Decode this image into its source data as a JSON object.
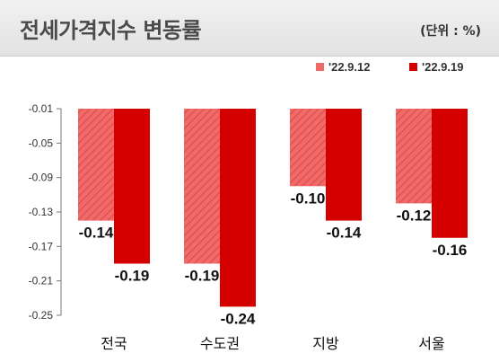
{
  "header": {
    "title": "전세가격지수 변동률",
    "unit": "(단위 : %)"
  },
  "colors": {
    "series1": "#f06a6a",
    "series1_stripe": "#e04848",
    "series2": "#d40000",
    "title_bg": "#e8e8e8"
  },
  "chart_data": {
    "type": "bar",
    "title": "전세가격지수 변동률",
    "unit": "(단위 : %)",
    "categories": [
      "전국",
      "수도권",
      "지방",
      "서울"
    ],
    "series": [
      {
        "name": "'22.9.12",
        "values": [
          -0.14,
          -0.19,
          -0.1,
          -0.12
        ],
        "labels": [
          "-0.14",
          "-0.19",
          "-0.10",
          "-0.12"
        ]
      },
      {
        "name": "'22.9.19",
        "values": [
          -0.19,
          -0.24,
          -0.14,
          -0.16
        ],
        "labels": [
          "-0.19",
          "-0.24",
          "-0.14",
          "-0.16"
        ]
      }
    ],
    "yticks": [
      "-0.01",
      "-0.05",
      "-0.09",
      "-0.13",
      "-0.17",
      "-0.21",
      "-0.25"
    ],
    "ylim": [
      -0.25,
      -0.01
    ],
    "legend_position": "top-right",
    "grid": false
  }
}
